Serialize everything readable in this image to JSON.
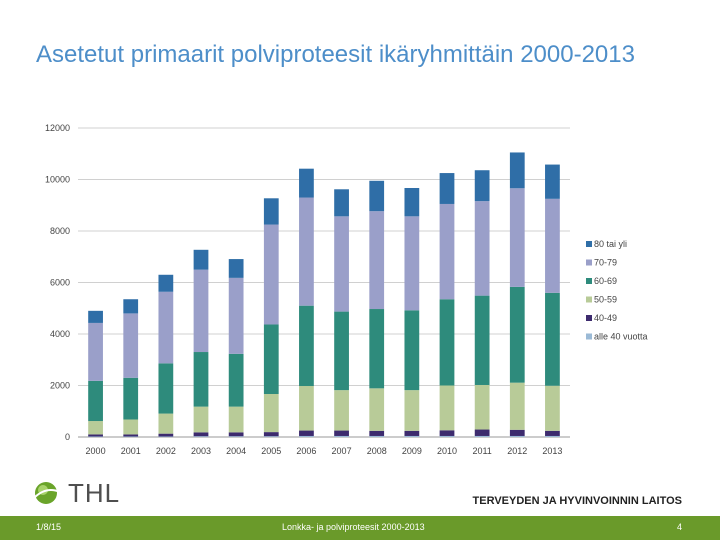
{
  "slide": {
    "title": "Asetetut primaarit polviproteesit ikäryhmittäin 2000-2013",
    "logo_text": "THL",
    "org_name": "TERVEYDEN JA HYVINVOINNIN LAITOS",
    "footer_date": "1/8/15",
    "footer_center": "Lonkka- ja polviproteesit 2000-2013",
    "footer_page": "4"
  },
  "chart_data": {
    "type": "bar",
    "stacked": true,
    "title": "",
    "xlabel": "",
    "ylabel": "",
    "ylim": [
      0,
      12000
    ],
    "yticks": [
      0,
      2000,
      4000,
      6000,
      8000,
      10000,
      12000
    ],
    "grid": true,
    "legend_position": "right",
    "categories": [
      "2000",
      "2001",
      "2002",
      "2003",
      "2004",
      "2005",
      "2006",
      "2007",
      "2008",
      "2009",
      "2010",
      "2011",
      "2012",
      "2013"
    ],
    "series": [
      {
        "name": "alle 40 vuotta",
        "color": "#9bbad6",
        "values": [
          20,
          20,
          20,
          30,
          30,
          30,
          40,
          40,
          40,
          40,
          40,
          40,
          40,
          40
        ]
      },
      {
        "name": "40-49",
        "color": "#3d2b6e",
        "values": [
          80,
          80,
          110,
          150,
          150,
          160,
          210,
          210,
          200,
          200,
          220,
          250,
          240,
          200
        ]
      },
      {
        "name": "50-59",
        "color": "#b8cb98",
        "values": [
          520,
          580,
          780,
          1000,
          1000,
          1480,
          1730,
          1570,
          1650,
          1580,
          1740,
          1730,
          1830,
          1750
        ]
      },
      {
        "name": "60-69",
        "color": "#2e8b7c",
        "values": [
          1560,
          1620,
          1950,
          2120,
          2050,
          2700,
          3120,
          3050,
          3080,
          3100,
          3350,
          3470,
          3720,
          3610
        ]
      },
      {
        "name": "70-79",
        "color": "#9a9fc9",
        "values": [
          2250,
          2500,
          2780,
          3200,
          2950,
          3880,
          4200,
          3700,
          3800,
          3650,
          3700,
          3670,
          3830,
          3650
        ]
      },
      {
        "name": "80 tai yli",
        "color": "#2f6ea7",
        "values": [
          470,
          550,
          660,
          770,
          730,
          1020,
          1120,
          1050,
          1180,
          1100,
          1200,
          1200,
          1390,
          1330
        ]
      }
    ]
  }
}
